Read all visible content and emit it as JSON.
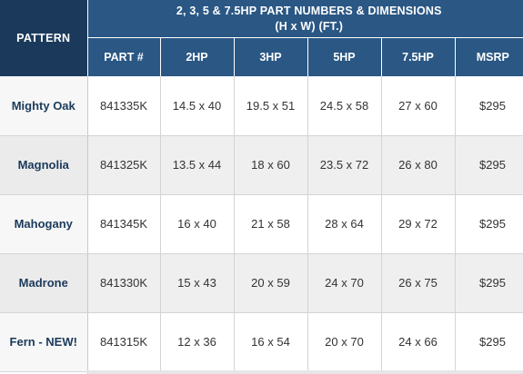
{
  "header": {
    "pattern_label": "PATTERN",
    "group_line1": "2, 3, 5 & 7.5HP PART NUMBERS & DIMENSIONS",
    "group_line2": "(H x W) (FT.)",
    "columns": [
      "PART #",
      "2HP",
      "3HP",
      "5HP",
      "7.5HP",
      "MSRP"
    ]
  },
  "rows": [
    {
      "pattern": "Mighty Oak",
      "part": "841335K",
      "hp2": "14.5 x 40",
      "hp3": "19.5 x 51",
      "hp5": "24.5 x 58",
      "hp75": "27 x 60",
      "msrp": "$295"
    },
    {
      "pattern": "Magnolia",
      "part": "841325K",
      "hp2": "13.5 x 44",
      "hp3": "18 x 60",
      "hp5": "23.5 x 72",
      "hp75": "26 x 80",
      "msrp": "$295"
    },
    {
      "pattern": "Mahogany",
      "part": "841345K",
      "hp2": "16 x 40",
      "hp3": "21 x 58",
      "hp5": "28 x 64",
      "hp75": "29 x 72",
      "msrp": "$295"
    },
    {
      "pattern": "Madrone",
      "part": "841330K",
      "hp2": "15 x 43",
      "hp3": "20 x 59",
      "hp5": "24 x 70",
      "hp75": "26 x 75",
      "msrp": "$295"
    },
    {
      "pattern": "Fern - NEW!",
      "part": "841315K",
      "hp2": "12 x 36",
      "hp3": "16 x 54",
      "hp5": "20 x 70",
      "hp75": "24 x 66",
      "msrp": "$295"
    }
  ],
  "colors": {
    "header_dark": "#1b3a5b",
    "header_blue": "#2a5784",
    "pattern_text": "#1b3a5b",
    "row_shade": "#efefef"
  }
}
